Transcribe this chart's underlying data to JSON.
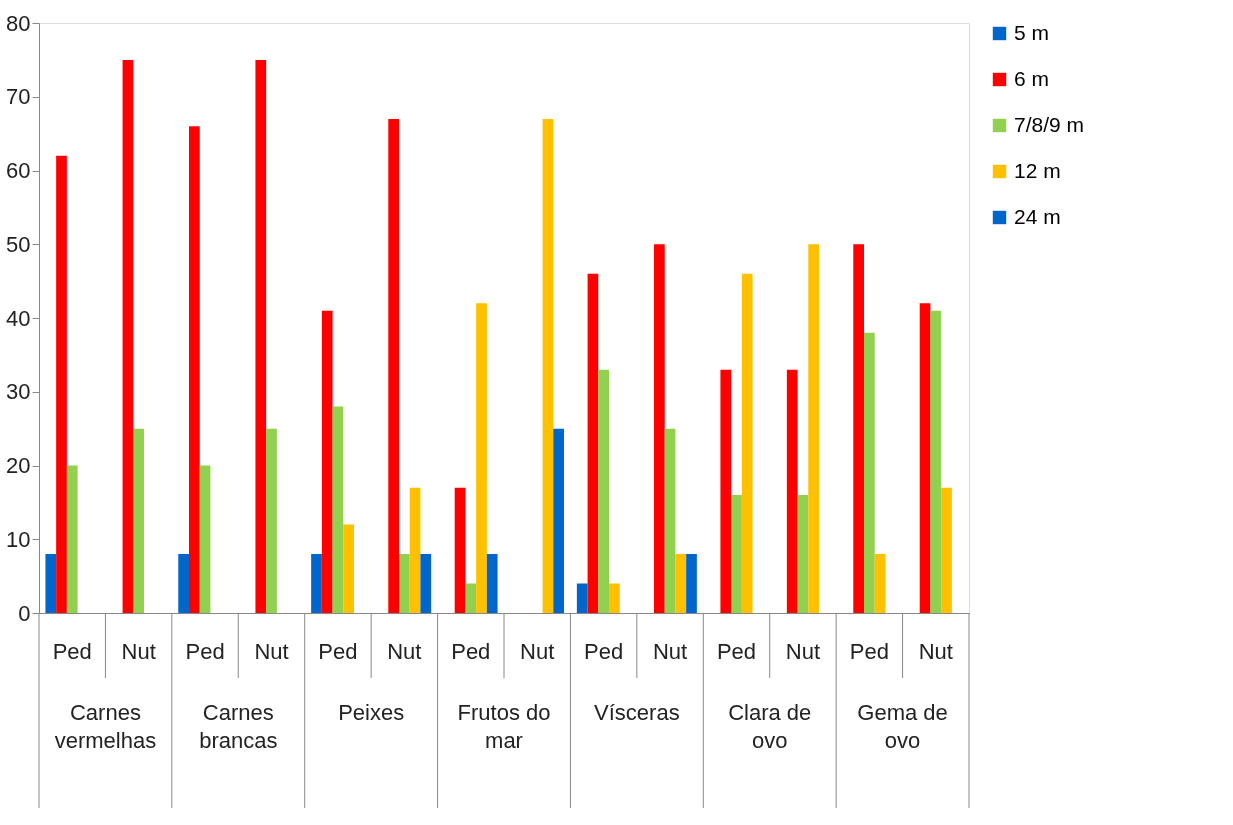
{
  "chart_data": {
    "type": "bar",
    "categories": [
      "Ped",
      "Nut",
      "Ped",
      "Nut",
      "Ped",
      "Nut",
      "Ped",
      "Nut",
      "Ped",
      "Nut",
      "Ped",
      "Nut",
      "Ped",
      "Nut"
    ],
    "annotations": [
      "Carnes\nvermelhas",
      "Carnes\nbrancas",
      "Peixes",
      "Frutos do\nmar",
      "Vísceras",
      "Clara de\novo",
      "Gema de\novo"
    ],
    "series": [
      {
        "name": "5 m",
        "color": "#0066cc",
        "values": [
          8,
          null,
          8,
          null,
          8,
          null,
          null,
          null,
          4,
          null,
          null,
          null,
          null,
          null
        ]
      },
      {
        "name": "6 m",
        "color": "#ff0000",
        "values": [
          62,
          75,
          66,
          75,
          41,
          67,
          17,
          null,
          46,
          50,
          33,
          33,
          50,
          42
        ]
      },
      {
        "name": "7/8/9 m",
        "color": "#92d050",
        "values": [
          20,
          25,
          20,
          25,
          28,
          8,
          4,
          null,
          33,
          25,
          16,
          16,
          38,
          41
        ]
      },
      {
        "name": "12 m",
        "color": "#ffc000",
        "values": [
          null,
          null,
          null,
          null,
          12,
          17,
          42,
          67,
          4,
          8,
          46,
          50,
          8,
          17
        ]
      },
      {
        "name": "24 m",
        "color": "#0066cc",
        "values": [
          null,
          null,
          null,
          null,
          null,
          8,
          8,
          25,
          null,
          8,
          null,
          null,
          null,
          null
        ]
      }
    ],
    "ylim": [
      0,
      80
    ],
    "yticks": [
      0,
      10,
      20,
      30,
      40,
      50,
      60,
      70,
      80
    ],
    "grid": false,
    "legend": "right"
  }
}
